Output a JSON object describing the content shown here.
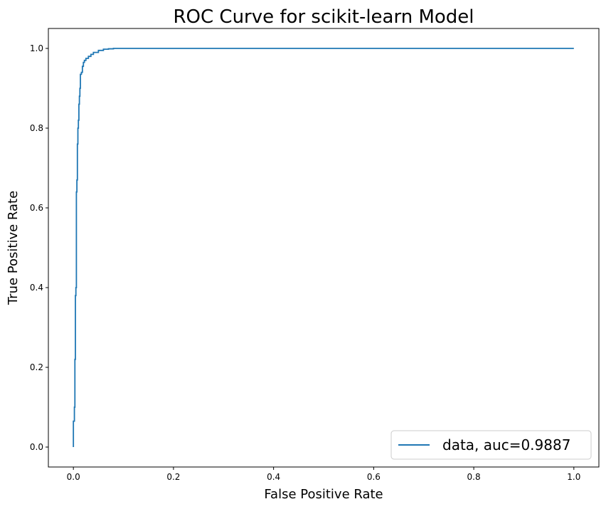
{
  "chart_data": {
    "type": "line",
    "title": "ROC Curve for scikit-learn Model",
    "xlabel": "False Positive Rate",
    "ylabel": "True Positive Rate",
    "xlim": [
      -0.05,
      1.05
    ],
    "ylim": [
      -0.05,
      1.05
    ],
    "xticks": [
      "0.0",
      "0.2",
      "0.4",
      "0.6",
      "0.8",
      "1.0"
    ],
    "yticks": [
      "0.0",
      "0.2",
      "0.4",
      "0.6",
      "0.8",
      "1.0"
    ],
    "grid": false,
    "legend_position": "lower-right",
    "series": [
      {
        "name": "data, auc=0.9887",
        "color": "#1f77b4",
        "x": [
          0.0,
          0.0,
          0.002,
          0.002,
          0.003,
          0.003,
          0.004,
          0.004,
          0.005,
          0.005,
          0.006,
          0.006,
          0.007,
          0.007,
          0.008,
          0.008,
          0.009,
          0.009,
          0.01,
          0.01,
          0.011,
          0.011,
          0.012,
          0.012,
          0.013,
          0.013,
          0.014,
          0.014,
          0.016,
          0.016,
          0.018,
          0.018,
          0.02,
          0.02,
          0.022,
          0.022,
          0.025,
          0.025,
          0.03,
          0.03,
          0.035,
          0.035,
          0.04,
          0.04,
          0.05,
          0.05,
          0.06,
          0.06,
          0.07,
          0.07,
          0.08,
          0.08,
          1.0
        ],
        "y": [
          0.0,
          0.065,
          0.065,
          0.1,
          0.1,
          0.22,
          0.22,
          0.38,
          0.38,
          0.4,
          0.4,
          0.64,
          0.64,
          0.67,
          0.67,
          0.76,
          0.76,
          0.8,
          0.8,
          0.82,
          0.82,
          0.86,
          0.86,
          0.88,
          0.88,
          0.9,
          0.9,
          0.935,
          0.935,
          0.94,
          0.94,
          0.955,
          0.955,
          0.965,
          0.965,
          0.97,
          0.97,
          0.975,
          0.975,
          0.98,
          0.98,
          0.985,
          0.985,
          0.99,
          0.99,
          0.995,
          0.995,
          0.998,
          0.998,
          0.999,
          0.999,
          1.0,
          1.0
        ]
      }
    ]
  }
}
